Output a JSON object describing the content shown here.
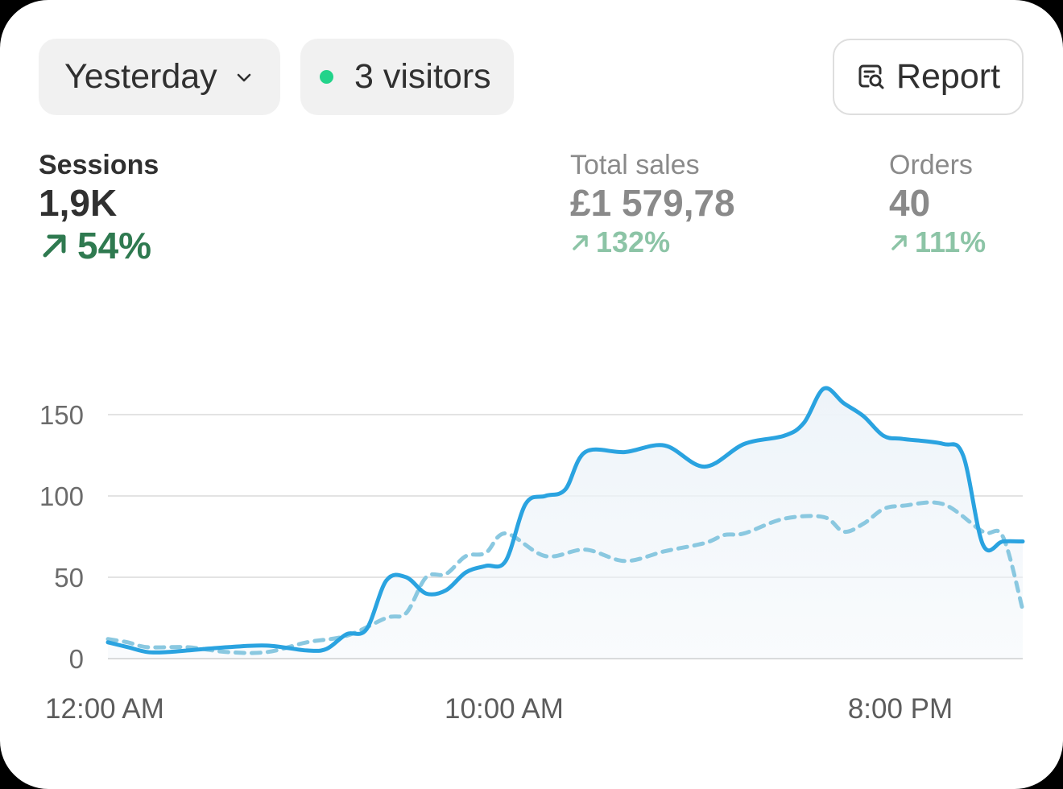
{
  "toolbar": {
    "period_label": "Yesterday",
    "visitors_label": "3 visitors",
    "report_label": "Report"
  },
  "icons": {
    "period": "chevron-down-icon",
    "live": "live-dot-icon",
    "report": "report-search-icon",
    "trend": "arrow-up-right-icon"
  },
  "colors": {
    "line_current": "#2aa3e0",
    "line_previous": "#8ac8e0",
    "area_fill": "#eef4f9",
    "positive_delta": "#2f7a50",
    "live_dot": "#22d38a"
  },
  "metrics": {
    "sessions": {
      "label": "Sessions",
      "value": "1,9K",
      "delta": "54%"
    },
    "total_sales": {
      "label": "Total sales",
      "value": "£1 579,78",
      "delta": "132%"
    },
    "orders": {
      "label": "Orders",
      "value": "40",
      "delta": "111%"
    }
  },
  "chart_data": {
    "type": "line",
    "ylim": [
      0,
      170
    ],
    "y_ticks": [
      "0",
      "50",
      "100",
      "150"
    ],
    "x_ticks": [
      "12:00 AM",
      "10:00 AM",
      "8:00 PM"
    ],
    "x_range": [
      0,
      23
    ],
    "grid": true,
    "series": [
      {
        "style": "solid",
        "x": [
          0,
          0.5,
          1,
          1.5,
          2,
          3,
          4,
          5,
          5.5,
          6,
          6.5,
          7,
          7.5,
          8,
          8.5,
          9,
          9.5,
          10,
          10.5,
          11,
          11.5,
          12,
          13,
          14,
          15,
          16,
          17,
          17.5,
          18,
          18.5,
          19,
          19.5,
          20,
          21,
          21.5,
          22,
          22.5,
          23
        ],
        "values": [
          10,
          7,
          4,
          4,
          5,
          7,
          8,
          5,
          6,
          15,
          18,
          48,
          50,
          40,
          42,
          53,
          57,
          60,
          95,
          100,
          104,
          127,
          127,
          131,
          118,
          132,
          137,
          145,
          166,
          157,
          149,
          137,
          135,
          132,
          125,
          70,
          72,
          72
        ]
      },
      {
        "style": "dashed",
        "x": [
          0,
          0.5,
          1,
          2,
          3,
          4,
          5,
          6,
          7,
          7.5,
          8,
          8.5,
          9,
          9.5,
          10,
          11,
          12,
          13,
          14,
          15,
          15.5,
          16,
          17,
          18,
          18.5,
          19,
          19.5,
          20,
          21,
          22,
          22.5,
          23
        ],
        "values": [
          12,
          10,
          7,
          7,
          4,
          4,
          10,
          14,
          25,
          28,
          50,
          52,
          63,
          65,
          77,
          63,
          67,
          60,
          66,
          71,
          76,
          77,
          86,
          87,
          78,
          83,
          92,
          94,
          95,
          78,
          75,
          30
        ]
      }
    ]
  }
}
